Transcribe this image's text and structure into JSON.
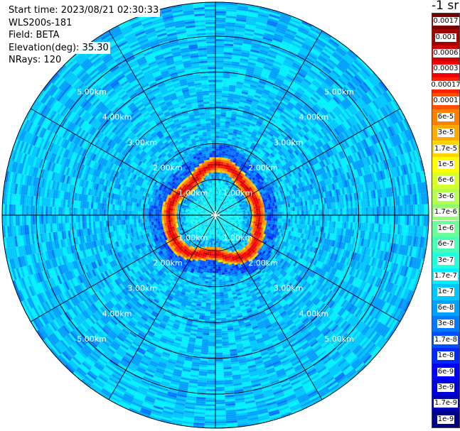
{
  "header": {
    "start_time": "Start time: 2023/08/21 02:30:33",
    "instrument": "WLS200s-181",
    "field": "Field: BETA",
    "elevation": "Elevation(deg): 35.30",
    "nrays": "NRays: 120"
  },
  "colorbar": {
    "title": "-1 sr",
    "labels": [
      "0.0017",
      "0.001",
      "0.0006",
      "0.0003",
      "0.00017",
      "0.0001",
      "6e-5",
      "3e-5",
      "1.7e-5",
      "1e-5",
      "6e-6",
      "3e-6",
      "1.7e-6",
      "1e-6",
      "6e-7",
      "3e-7",
      "1.7e-7",
      "1e-7",
      "6e-8",
      "3e-8",
      "1.7e-8",
      "1e-8",
      "6e-9",
      "3e-9",
      "1.7e-9",
      "1e-9"
    ],
    "colors": [
      "#7a0000",
      "#a50000",
      "#d00000",
      "#f00000",
      "#ff2000",
      "#ff5000",
      "#ff8000",
      "#ffaa00",
      "#ffd400",
      "#ffff00",
      "#d8ff28",
      "#b4ff4c",
      "#90ff70",
      "#6cff94",
      "#48ffb8",
      "#24ffdc",
      "#00f0ff",
      "#00c8ff",
      "#00a0ff",
      "#0078ff",
      "#0050ff",
      "#0028ff",
      "#0000ff",
      "#0000d8",
      "#0000b0",
      "#000088"
    ]
  },
  "chart_data": {
    "type": "heatmap",
    "projection": "polar PPI scan",
    "range_unit": "km",
    "range_rings_km": [
      1,
      2,
      3,
      4,
      5
    ],
    "ring_labels": [
      "1.00km",
      "2.00km",
      "3.00km",
      "4.00km",
      "5.00km"
    ],
    "max_range_km": 5.95,
    "radial_lines_deg": [
      0,
      30,
      60,
      90,
      120,
      150,
      180,
      210,
      240,
      270,
      300,
      330
    ],
    "nrays": 120,
    "elevation_deg": 35.3,
    "background_level": "1e-7",
    "enhanced_layer": {
      "range_km": [
        1.05,
        1.45
      ],
      "peak_beta": "0.0006",
      "edge_beta": "1.7e-5"
    },
    "near_field_range_km": [
      0,
      1.0
    ],
    "near_field_beta": "1.7e-7"
  }
}
